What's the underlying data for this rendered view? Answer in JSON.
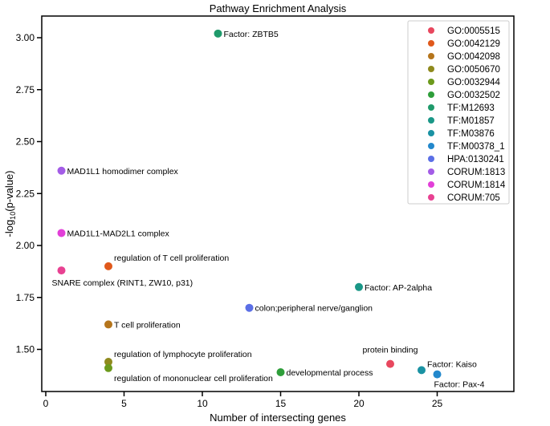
{
  "chart_data": {
    "type": "scatter",
    "title": "Pathway Enrichment Analysis",
    "xlabel": "Number of intersecting genes",
    "ylabel": "-log10(p-value)",
    "xlim": [
      -0.3,
      26
    ],
    "ylim": [
      1.31,
      3.1
    ],
    "xticks": [
      0,
      5,
      10,
      15,
      20,
      25
    ],
    "yticks": [
      "1.50",
      "1.75",
      "2.00",
      "2.25",
      "2.50",
      "2.75",
      "3.00"
    ],
    "grid": false,
    "legend_position": "top-right",
    "points": [
      {
        "series": "GO:0005515",
        "label": "protein binding",
        "x": 22,
        "y": 1.43,
        "color": "#e8475e"
      },
      {
        "series": "GO:0042129",
        "label": "regulation of T cell proliferation",
        "x": 4,
        "y": 1.9,
        "color": "#e0591b"
      },
      {
        "series": "GO:0042098",
        "label": "T cell proliferation",
        "x": 4,
        "y": 1.62,
        "color": "#b5751c"
      },
      {
        "series": "GO:0050670",
        "label": "regulation of lymphocyte proliferation",
        "x": 4,
        "y": 1.44,
        "color": "#8f8a1d"
      },
      {
        "series": "GO:0032944",
        "label": "regulation of mononuclear cell proliferation",
        "x": 4,
        "y": 1.41,
        "color": "#6c9a1c"
      },
      {
        "series": "GO:0032502",
        "label": "developmental process",
        "x": 15,
        "y": 1.39,
        "color": "#2e9e3a"
      },
      {
        "series": "TF:M12693",
        "label": "Factor: ZBTB5",
        "x": 11,
        "y": 3.02,
        "color": "#1f9a6b"
      },
      {
        "series": "TF:M01857",
        "label": "Factor: AP-2alpha",
        "x": 20,
        "y": 1.8,
        "color": "#1a9787"
      },
      {
        "series": "TF:M03876",
        "label": "Factor: Kaiso",
        "x": 24,
        "y": 1.4,
        "color": "#1a92a3"
      },
      {
        "series": "TF:M00378_1",
        "label": "Factor: Pax-4",
        "x": 25,
        "y": 1.38,
        "color": "#2388cc"
      },
      {
        "series": "HPA:0130241",
        "label": "colon;peripheral nerve/ganglion",
        "x": 13,
        "y": 1.7,
        "color": "#5b6fe6"
      },
      {
        "series": "CORUM:1813",
        "label": "MAD1L1 homodimer complex",
        "x": 1,
        "y": 2.36,
        "color": "#a35ce6"
      },
      {
        "series": "CORUM:1814",
        "label": "MAD1L1-MAD2L1 complex",
        "x": 1,
        "y": 2.06,
        "color": "#e23fd8"
      },
      {
        "series": "CORUM:705",
        "label": "SNARE complex (RINT1, ZW10, p31)",
        "x": 1,
        "y": 1.88,
        "color": "#e84192"
      }
    ]
  }
}
